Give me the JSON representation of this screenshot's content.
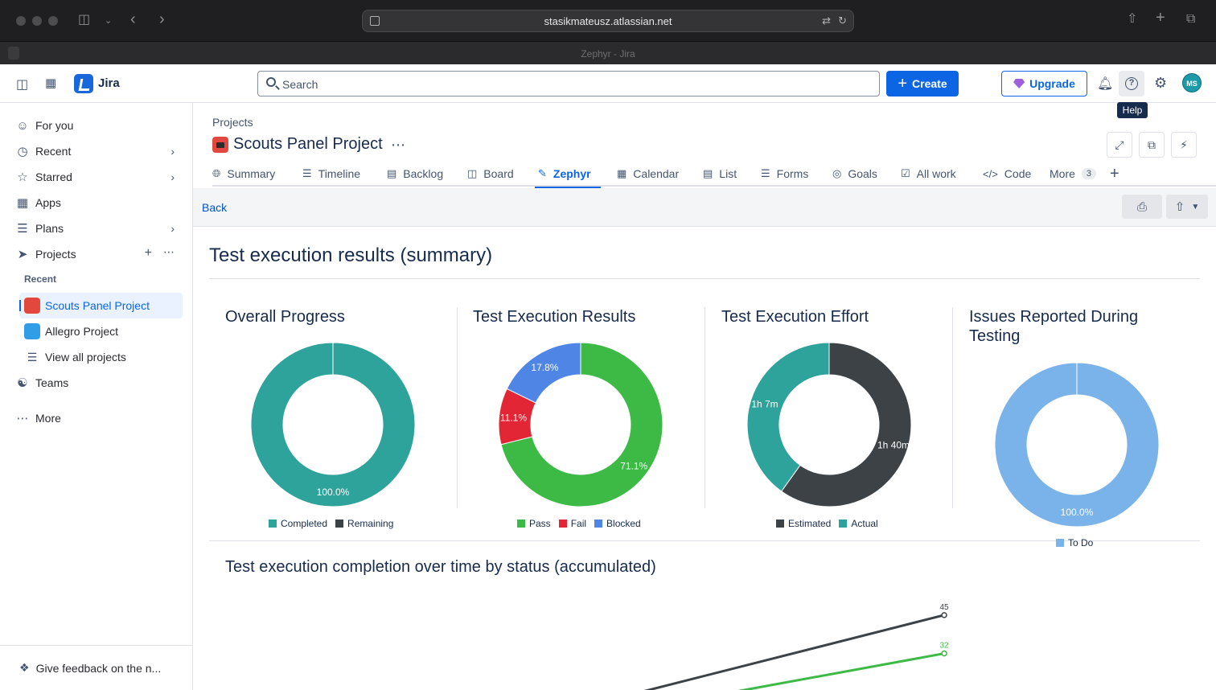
{
  "browser": {
    "url": "stasikmateusz.atlassian.net",
    "tab_title": "Zephyr - Jira"
  },
  "header": {
    "app_name": "Jira",
    "search_placeholder": "Search",
    "create_label": "Create",
    "upgrade_label": "Upgrade",
    "avatar_initials": "MS",
    "tooltip": "Help"
  },
  "sidebar": {
    "for_you": "For you",
    "recent": "Recent",
    "starred": "Starred",
    "apps": "Apps",
    "plans": "Plans",
    "projects": "Projects",
    "recent_section": "Recent",
    "project_items": [
      "Scouts Panel Project",
      "Allegro Project"
    ],
    "view_all": "View all projects",
    "teams": "Teams",
    "more": "More",
    "feedback": "Give feedback on the n..."
  },
  "project": {
    "breadcrumb": "Projects",
    "title": "Scouts Panel Project"
  },
  "tabs": [
    {
      "label": "Summary",
      "icon": "globe-icon"
    },
    {
      "label": "Timeline",
      "icon": "timeline-icon"
    },
    {
      "label": "Backlog",
      "icon": "backlog-icon"
    },
    {
      "label": "Board",
      "icon": "board-icon"
    },
    {
      "label": "Zephyr",
      "icon": "zephyr-icon"
    },
    {
      "label": "Calendar",
      "icon": "calendar-icon"
    },
    {
      "label": "List",
      "icon": "list-icon"
    },
    {
      "label": "Forms",
      "icon": "forms-icon"
    },
    {
      "label": "Goals",
      "icon": "goals-icon"
    },
    {
      "label": "All work",
      "icon": "all-work-icon"
    },
    {
      "label": "Code",
      "icon": "code-icon"
    }
  ],
  "tabs_more": {
    "label": "More",
    "count": "3"
  },
  "zephyr": {
    "back_label": "Back",
    "report_title": "Test execution results (summary)"
  },
  "colors": {
    "teal": "#2ea39b",
    "dark": "#3d4246",
    "green": "#3cba45",
    "red": "#e32636",
    "blue": "#4f86e6",
    "light_blue": "#7ab2ea"
  },
  "chart_data": [
    {
      "type": "pie",
      "title": "Overall Progress",
      "labels": [
        "Completed",
        "Remaining"
      ],
      "values": [
        100,
        0
      ],
      "value_labels": [
        "100.0%",
        ""
      ],
      "colors": [
        "#2ea39b",
        "#3d4246"
      ]
    },
    {
      "type": "pie",
      "title": "Test Execution Results",
      "labels": [
        "Pass",
        "Fail",
        "Blocked"
      ],
      "values": [
        71.1,
        11.1,
        17.8
      ],
      "value_labels": [
        "71.1%",
        "11.1%",
        "17.8%"
      ],
      "colors": [
        "#3cba45",
        "#e32636",
        "#4f86e6"
      ]
    },
    {
      "type": "pie",
      "title": "Test Execution Effort",
      "labels": [
        "Estimated",
        "Actual"
      ],
      "values": [
        100,
        67
      ],
      "value_labels": [
        "1h 40m",
        "1h 7m"
      ],
      "colors": [
        "#3d4246",
        "#2ea39b"
      ]
    },
    {
      "type": "pie",
      "title": "Issues Reported During Testing",
      "labels": [
        "To Do"
      ],
      "values": [
        100
      ],
      "value_labels": [
        "100.0%"
      ],
      "colors": [
        "#7ab2ea"
      ]
    },
    {
      "type": "line",
      "title": "Test execution completion over time by status (accumulated)",
      "series": [
        {
          "values": [
            45
          ],
          "color": "#3d4246"
        },
        {
          "values": [
            32
          ],
          "color": "#3cba45"
        }
      ]
    }
  ]
}
